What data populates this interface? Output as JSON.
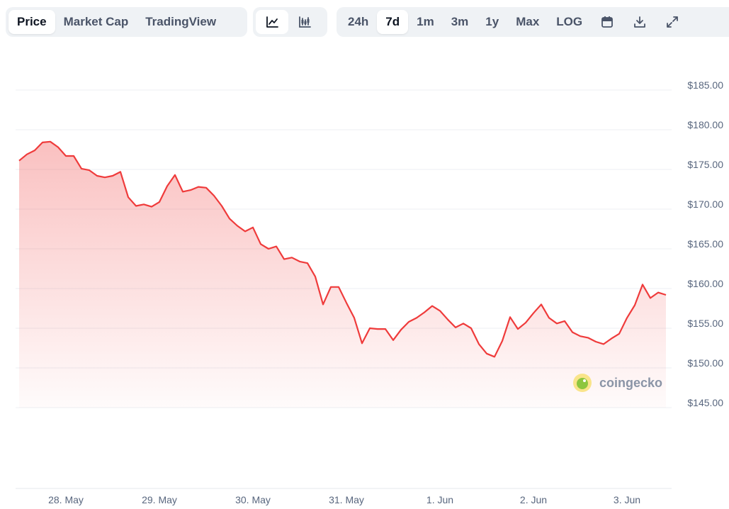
{
  "toolbar": {
    "views": [
      "Price",
      "Market Cap",
      "TradingView"
    ],
    "ranges": [
      "24h",
      "7d",
      "1m",
      "3m",
      "1y",
      "Max",
      "LOG"
    ]
  },
  "watermark": "coingecko",
  "chart_data": {
    "type": "line",
    "categories": [
      null,
      null,
      null,
      null,
      null,
      null,
      "28. May",
      null,
      null,
      null,
      null,
      null,
      null,
      null,
      null,
      null,
      null,
      null,
      "29. May",
      null,
      null,
      null,
      null,
      null,
      null,
      null,
      null,
      null,
      null,
      null,
      "30. May",
      null,
      null,
      null,
      null,
      null,
      null,
      null,
      null,
      null,
      null,
      null,
      "31. May",
      null,
      null,
      null,
      null,
      null,
      null,
      null,
      null,
      null,
      null,
      null,
      "1. Jun",
      null,
      null,
      null,
      null,
      null,
      null,
      null,
      null,
      null,
      null,
      null,
      "2. Jun",
      null,
      null,
      null,
      null,
      null,
      null,
      null,
      null,
      null,
      null,
      null,
      "3. Jun",
      null,
      null,
      null,
      null,
      null
    ],
    "values": [
      176.1,
      176.9,
      177.4,
      178.4,
      178.5,
      177.8,
      176.7,
      176.7,
      175.1,
      174.9,
      174.2,
      174.0,
      174.2,
      174.7,
      171.5,
      170.4,
      170.6,
      170.3,
      170.9,
      172.9,
      174.3,
      172.2,
      172.4,
      172.8,
      172.7,
      171.7,
      170.4,
      168.8,
      167.9,
      167.2,
      167.7,
      165.6,
      165.0,
      165.3,
      163.7,
      163.9,
      163.4,
      163.2,
      161.5,
      158.0,
      160.2,
      160.2,
      158.2,
      156.3,
      153.1,
      155.0,
      154.9,
      154.9,
      153.5,
      154.8,
      155.8,
      156.3,
      157.0,
      157.8,
      157.2,
      156.1,
      155.1,
      155.6,
      155.0,
      153.0,
      151.8,
      151.4,
      153.4,
      156.4,
      154.9,
      155.7,
      156.9,
      158.0,
      156.3,
      155.6,
      155.9,
      154.5,
      154.0,
      153.8,
      153.3,
      153.0,
      153.7,
      154.3,
      156.3,
      157.9,
      160.5,
      158.8,
      159.5,
      159.2
    ],
    "color": "#ef3b3b",
    "ylim": [
      145,
      185
    ],
    "yticks": [
      {
        "value": 145,
        "label": "$145.00"
      },
      {
        "value": 150,
        "label": "$150.00"
      },
      {
        "value": 155,
        "label": "$155.00"
      },
      {
        "value": 160,
        "label": "$160.00"
      },
      {
        "value": 165,
        "label": "$165.00"
      },
      {
        "value": 170,
        "label": "$170.00"
      },
      {
        "value": 175,
        "label": "$175.00"
      },
      {
        "value": 180,
        "label": "$180.00"
      },
      {
        "value": 185,
        "label": "$185.00"
      }
    ],
    "grid": true
  }
}
